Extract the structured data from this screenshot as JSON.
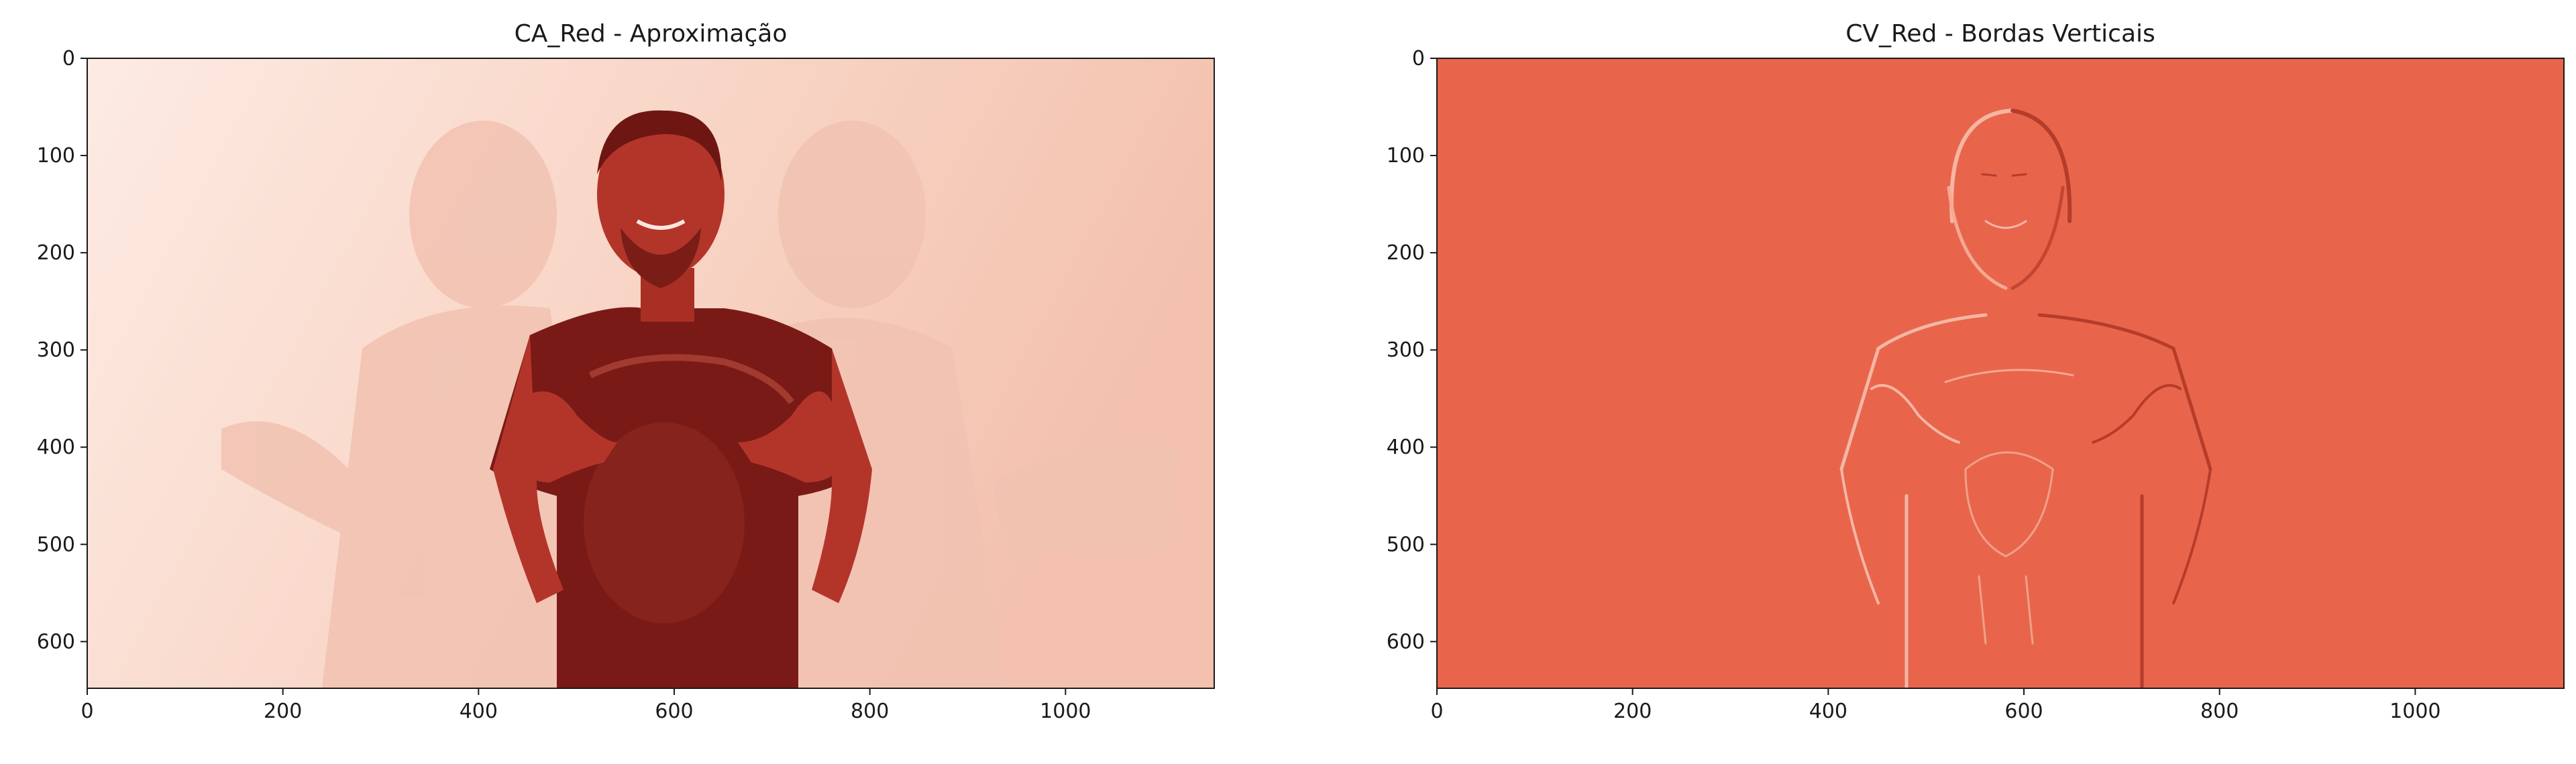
{
  "chart_data": [
    {
      "type": "image",
      "title": "CA_Red - Aproximação",
      "x_ticks": [
        0,
        200,
        400,
        600,
        800,
        1000
      ],
      "y_ticks": [
        0,
        100,
        200,
        300,
        400,
        500,
        600
      ],
      "xlim": [
        0,
        1152
      ],
      "ylim": [
        648,
        0
      ],
      "colors": {
        "background": "#fbe6dd",
        "shadow": "#f1c2b1",
        "shirt": "#7a1a16",
        "skin": "#b3352a"
      }
    },
    {
      "type": "image",
      "title": "CV_Red - Bordas Verticais",
      "x_ticks": [
        0,
        200,
        400,
        600,
        800,
        1000
      ],
      "y_ticks": [
        0,
        100,
        200,
        300,
        400,
        500,
        600
      ],
      "xlim": [
        0,
        1152
      ],
      "ylim": [
        648,
        0
      ],
      "colors": {
        "background": "#e8654c",
        "edge_light": "#f6b6a4",
        "edge_dark": "#b63c2a"
      }
    }
  ]
}
